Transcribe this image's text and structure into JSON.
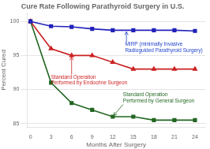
{
  "chart_data": {
    "type": "line",
    "title": "Cure Rate Following Parathyroid Surgery in U.S.",
    "x_label": "Months After Surgery",
    "y_label": "Percent Cured",
    "x": [
      0,
      3,
      6,
      9,
      12,
      15,
      18,
      21,
      24
    ],
    "series": [
      {
        "color": "#2222bb",
        "marker": "square",
        "values": [
          100,
          99.3,
          99.2,
          98.9,
          98.7,
          98.7,
          98.7,
          98.7,
          98.6
        ]
      },
      {
        "color": "#cc2222",
        "marker": "triangle",
        "values": [
          100,
          96.0,
          95.0,
          95.0,
          94.0,
          93.0,
          93.0,
          93.0,
          93.0
        ]
      },
      {
        "color": "#226622",
        "marker": "square",
        "values": [
          100,
          91.0,
          88.0,
          87.0,
          86.0,
          86.0,
          85.5,
          85.5,
          85.5
        ]
      }
    ],
    "xlim": [
      -0.5,
      25.5
    ],
    "ylim": [
      84.5,
      101.2
    ],
    "xticks": [
      0,
      3,
      6,
      9,
      12,
      15,
      18,
      21,
      24
    ],
    "yticks": [
      85,
      90,
      95,
      100
    ],
    "grid": "y",
    "annotations": [
      {
        "text": "MIRP (minimally Invasive\nRadioguided Parathyroid Surgery)",
        "xy": [
          14,
          98.7
        ],
        "xytext": [
          13.8,
          97.0
        ],
        "color": "#2244cc"
      },
      {
        "text": "Standard Operation\nPerformed by Endocrine Surgeon",
        "xy": [
          6,
          95.0
        ],
        "xytext": [
          3.0,
          92.2
        ],
        "color": "#cc2222"
      },
      {
        "text": "Standard Operation\nPerformed by General Surgeon",
        "xy": [
          12,
          86.0
        ],
        "xytext": [
          13.5,
          87.8
        ],
        "color": "#226622"
      }
    ]
  }
}
